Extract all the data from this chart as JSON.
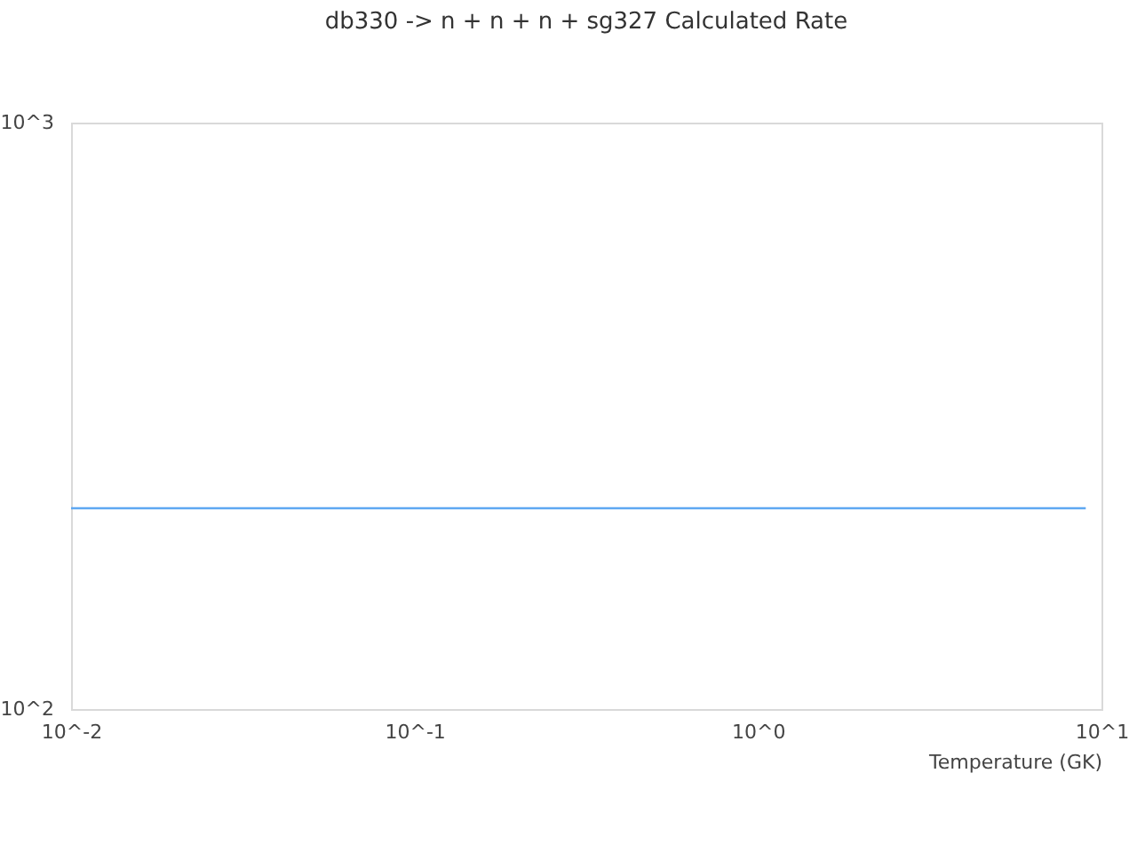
{
  "chart_data": {
    "type": "line",
    "title": "db330 -> n + n + n + sg327 Calculated Rate",
    "xlabel": "Temperature (GK)",
    "x": [
      0.01,
      9
    ],
    "series": [
      {
        "color": "#5ea8f2",
        "values": [
          220,
          220
        ]
      }
    ],
    "xlim": [
      0.01,
      10
    ],
    "ylim": [
      100,
      1000
    ],
    "xticks": [
      {
        "value": 0.01,
        "label": "10^-2"
      },
      {
        "value": 0.1,
        "label": "10^-1"
      },
      {
        "value": 1,
        "label": "10^0"
      },
      {
        "value": 10,
        "label": "10^1"
      }
    ],
    "yticks": [
      {
        "value": 100,
        "label": "10^2"
      },
      {
        "value": 1000,
        "label": "10^3"
      }
    ],
    "log": "xy",
    "grid": false,
    "marker": "none",
    "line_style": "solid"
  }
}
